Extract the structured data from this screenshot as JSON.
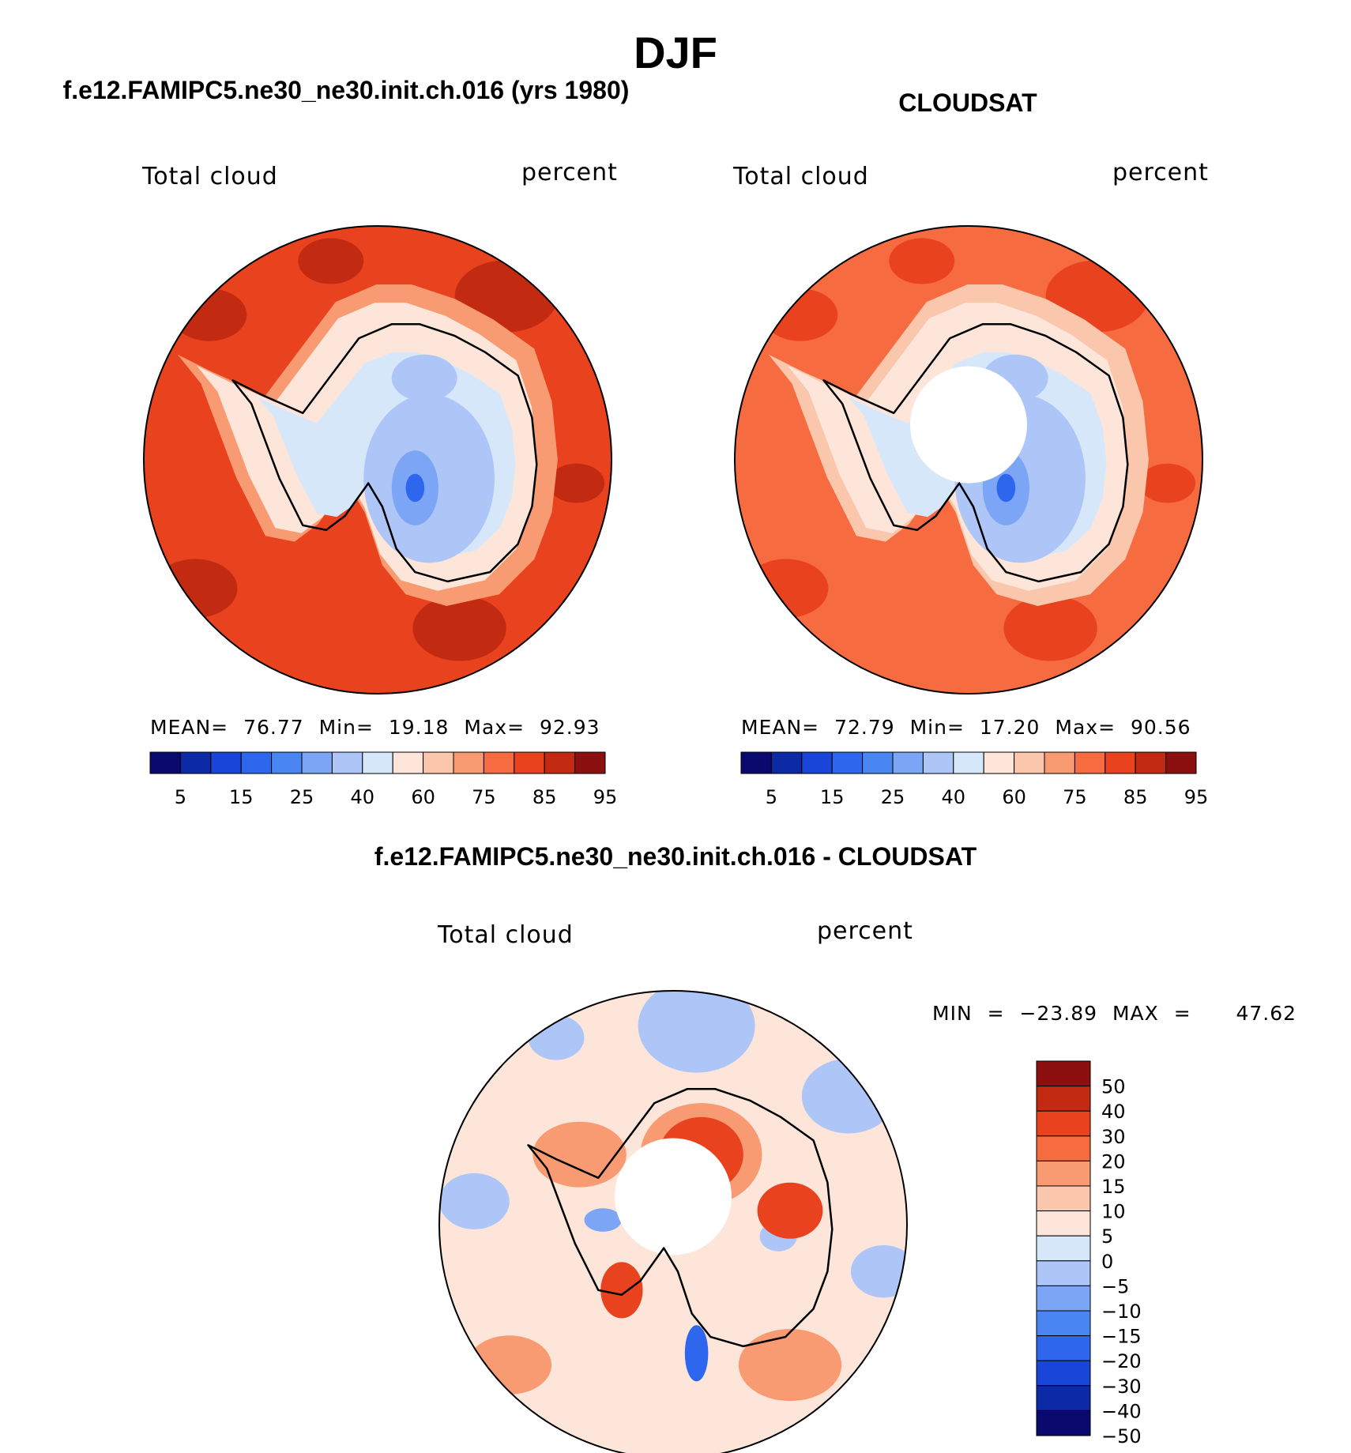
{
  "title": "DJF",
  "colors": {
    "cb_abs": [
      "#0a0a6e",
      "#0d2aa6",
      "#1a45d9",
      "#2e67ee",
      "#4a86f2",
      "#7ca6f5",
      "#adc6f7",
      "#d7e7fa",
      "#fde6d9",
      "#fac6ac",
      "#f89a72",
      "#f66b3f",
      "#e8421e",
      "#c22a12",
      "#8c1010"
    ],
    "cb_diff": [
      "#0a0a6e",
      "#0d2aa6",
      "#1a45d9",
      "#2e67ee",
      "#4a86f2",
      "#7ca6f5",
      "#adc6f7",
      "#d7e7fa",
      "#fde6d9",
      "#fac6ac",
      "#f89a72",
      "#f66b3f",
      "#e8421e",
      "#c22a12",
      "#8c1010"
    ]
  },
  "panels": {
    "model": {
      "subtitle": "f.e12.FAMIPC5.ne30_ne30.init.ch.016 (yrs 1980)",
      "left_label": "Total cloud",
      "right_label": "percent",
      "mean_label": "MEAN=",
      "mean": "76.77",
      "min_label": "Min=",
      "min": "19.18",
      "max_label": "Max=",
      "max": "92.93"
    },
    "obs": {
      "subtitle": "CLOUDSAT",
      "left_label": "Total cloud",
      "right_label": "percent",
      "mean_label": "MEAN=",
      "mean": "72.79",
      "min_label": "Min=",
      "min": "17.20",
      "max_label": "Max=",
      "max": "90.56"
    },
    "diff": {
      "subtitle": "f.e12.FAMIPC5.ne30_ne30.init.ch.016 - CLOUDSAT",
      "left_label": "Total cloud",
      "right_label": "percent",
      "minmax_text": "MIN = −23.89 MAX =   47.62"
    }
  },
  "chart_data": [
    {
      "type": "heatmap",
      "projection": "south-polar-stereographic",
      "title": "f.e12.FAMIPC5.ne30_ne30.init.ch.016 (yrs 1980)",
      "variable": "Total cloud",
      "units": "percent",
      "stats": {
        "mean": 76.77,
        "min": 19.18,
        "max": 92.93
      },
      "colorbar_levels": [
        5,
        10,
        15,
        20,
        25,
        30,
        40,
        50,
        60,
        70,
        75,
        80,
        85,
        90,
        95
      ],
      "colorbar_tick_labels": [
        "5",
        "15",
        "25",
        "40",
        "60",
        "75",
        "85",
        "95"
      ],
      "regions": [
        {
          "name": "ocean",
          "value": 85
        },
        {
          "name": "ocean-patches",
          "value": 90
        },
        {
          "name": "coast-ring",
          "value": 60
        },
        {
          "name": "east-antarctic-plateau",
          "value": 40
        },
        {
          "name": "plateau-minimum",
          "value": 20
        }
      ]
    },
    {
      "type": "heatmap",
      "projection": "south-polar-stereographic",
      "title": "CLOUDSAT",
      "variable": "Total cloud",
      "units": "percent",
      "stats": {
        "mean": 72.79,
        "min": 17.2,
        "max": 90.56
      },
      "colorbar_levels": [
        5,
        10,
        15,
        20,
        25,
        30,
        40,
        50,
        60,
        70,
        75,
        80,
        85,
        90,
        95
      ],
      "colorbar_tick_labels": [
        "5",
        "15",
        "25",
        "40",
        "60",
        "75",
        "85",
        "95"
      ],
      "missing_region": "pole (no data)",
      "regions": [
        {
          "name": "ocean",
          "value": 80
        },
        {
          "name": "ocean-patches",
          "value": 85
        },
        {
          "name": "coast-ring",
          "value": 60
        },
        {
          "name": "east-antarctic-plateau",
          "value": 40
        },
        {
          "name": "plateau-minimum",
          "value": 20
        }
      ]
    },
    {
      "type": "heatmap",
      "projection": "south-polar-stereographic",
      "title": "f.e12.FAMIPC5.ne30_ne30.init.ch.016 - CLOUDSAT",
      "variable": "Total cloud",
      "units": "percent",
      "stats": {
        "min": -23.89,
        "max": 47.62
      },
      "colorbar_levels": [
        -50,
        -40,
        -30,
        -20,
        -15,
        -10,
        -5,
        0,
        5,
        10,
        15,
        20,
        30,
        40,
        50
      ],
      "colorbar_tick_labels": [
        "50",
        "40",
        "30",
        "20",
        "15",
        "10",
        "5",
        "0",
        "−5",
        "−10",
        "−15",
        "−20",
        "−30",
        "−40",
        "−50"
      ],
      "missing_region": "pole (no data)",
      "regions": [
        {
          "name": "ocean",
          "value": 5
        },
        {
          "name": "ocean-negative-patches",
          "value": -5
        },
        {
          "name": "east-antarctica-positive",
          "value": 30
        },
        {
          "name": "ross-sea-negative",
          "value": -20
        }
      ]
    }
  ]
}
